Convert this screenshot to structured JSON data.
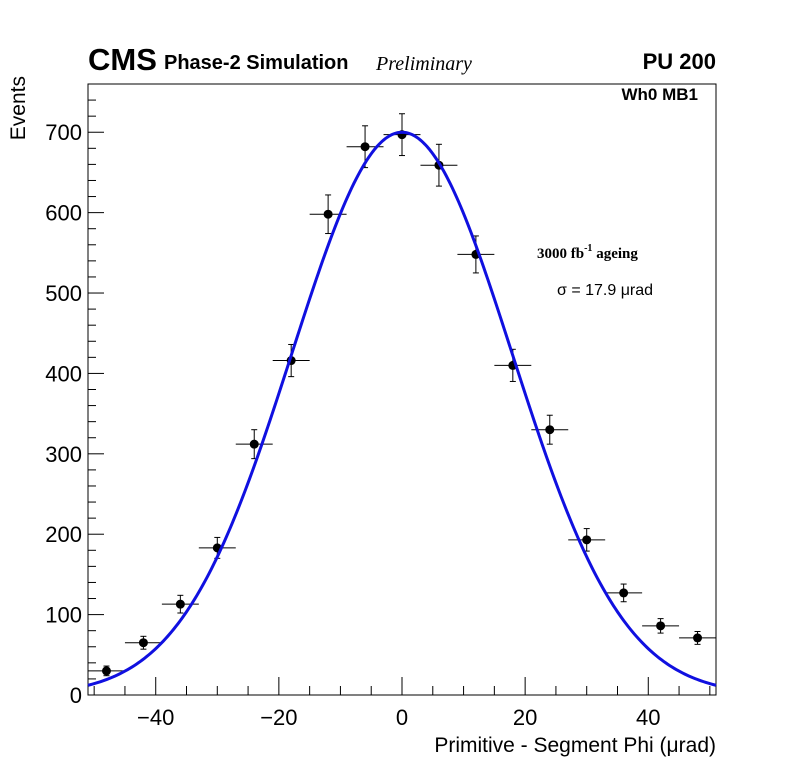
{
  "header": {
    "experiment": "CMS",
    "subtitle": "Phase-2 Simulation",
    "status": "Preliminary",
    "pileup": "PU 200"
  },
  "annotations": {
    "region": "Wh0 MB1",
    "ageing_prefix": "3000 fb",
    "ageing_exponent": "-1",
    "ageing_suffix": " ageing",
    "sigma_label": "σ = 17.9 μrad"
  },
  "chart_data": {
    "type": "scatter",
    "title": "",
    "xlabel": "Primitive - Segment Phi (μrad)",
    "ylabel": "Events",
    "xlim": [
      -51,
      51
    ],
    "ylim": [
      0,
      760
    ],
    "x_ticks": [
      -40,
      -20,
      0,
      20,
      40
    ],
    "x_tick_labels": [
      "−40",
      "−20",
      "0",
      "20",
      "40"
    ],
    "y_ticks": [
      0,
      100,
      200,
      300,
      400,
      500,
      600,
      700
    ],
    "y_tick_labels": [
      "0",
      "100",
      "200",
      "300",
      "400",
      "500",
      "600",
      "700"
    ],
    "grid": false,
    "bin_half_width": 3,
    "series": [
      {
        "name": "Simulation",
        "x": [
          -48,
          -42,
          -36,
          -30,
          -24,
          -18,
          -12,
          -6,
          0,
          6,
          12,
          18,
          24,
          30,
          36,
          42,
          48
        ],
        "values": [
          30,
          65,
          113,
          183,
          312,
          416,
          598,
          682,
          697,
          659,
          548,
          410,
          330,
          193,
          127,
          86,
          71
        ],
        "yerr": [
          6,
          8,
          11,
          13,
          18,
          20,
          24,
          26,
          26,
          26,
          23,
          20,
          18,
          14,
          11,
          9,
          8
        ],
        "color": "#000000"
      }
    ],
    "fit": {
      "type": "gaussian",
      "amplitude": 700,
      "mean": 0,
      "sigma": 17.9,
      "color": "#1010e0"
    }
  }
}
